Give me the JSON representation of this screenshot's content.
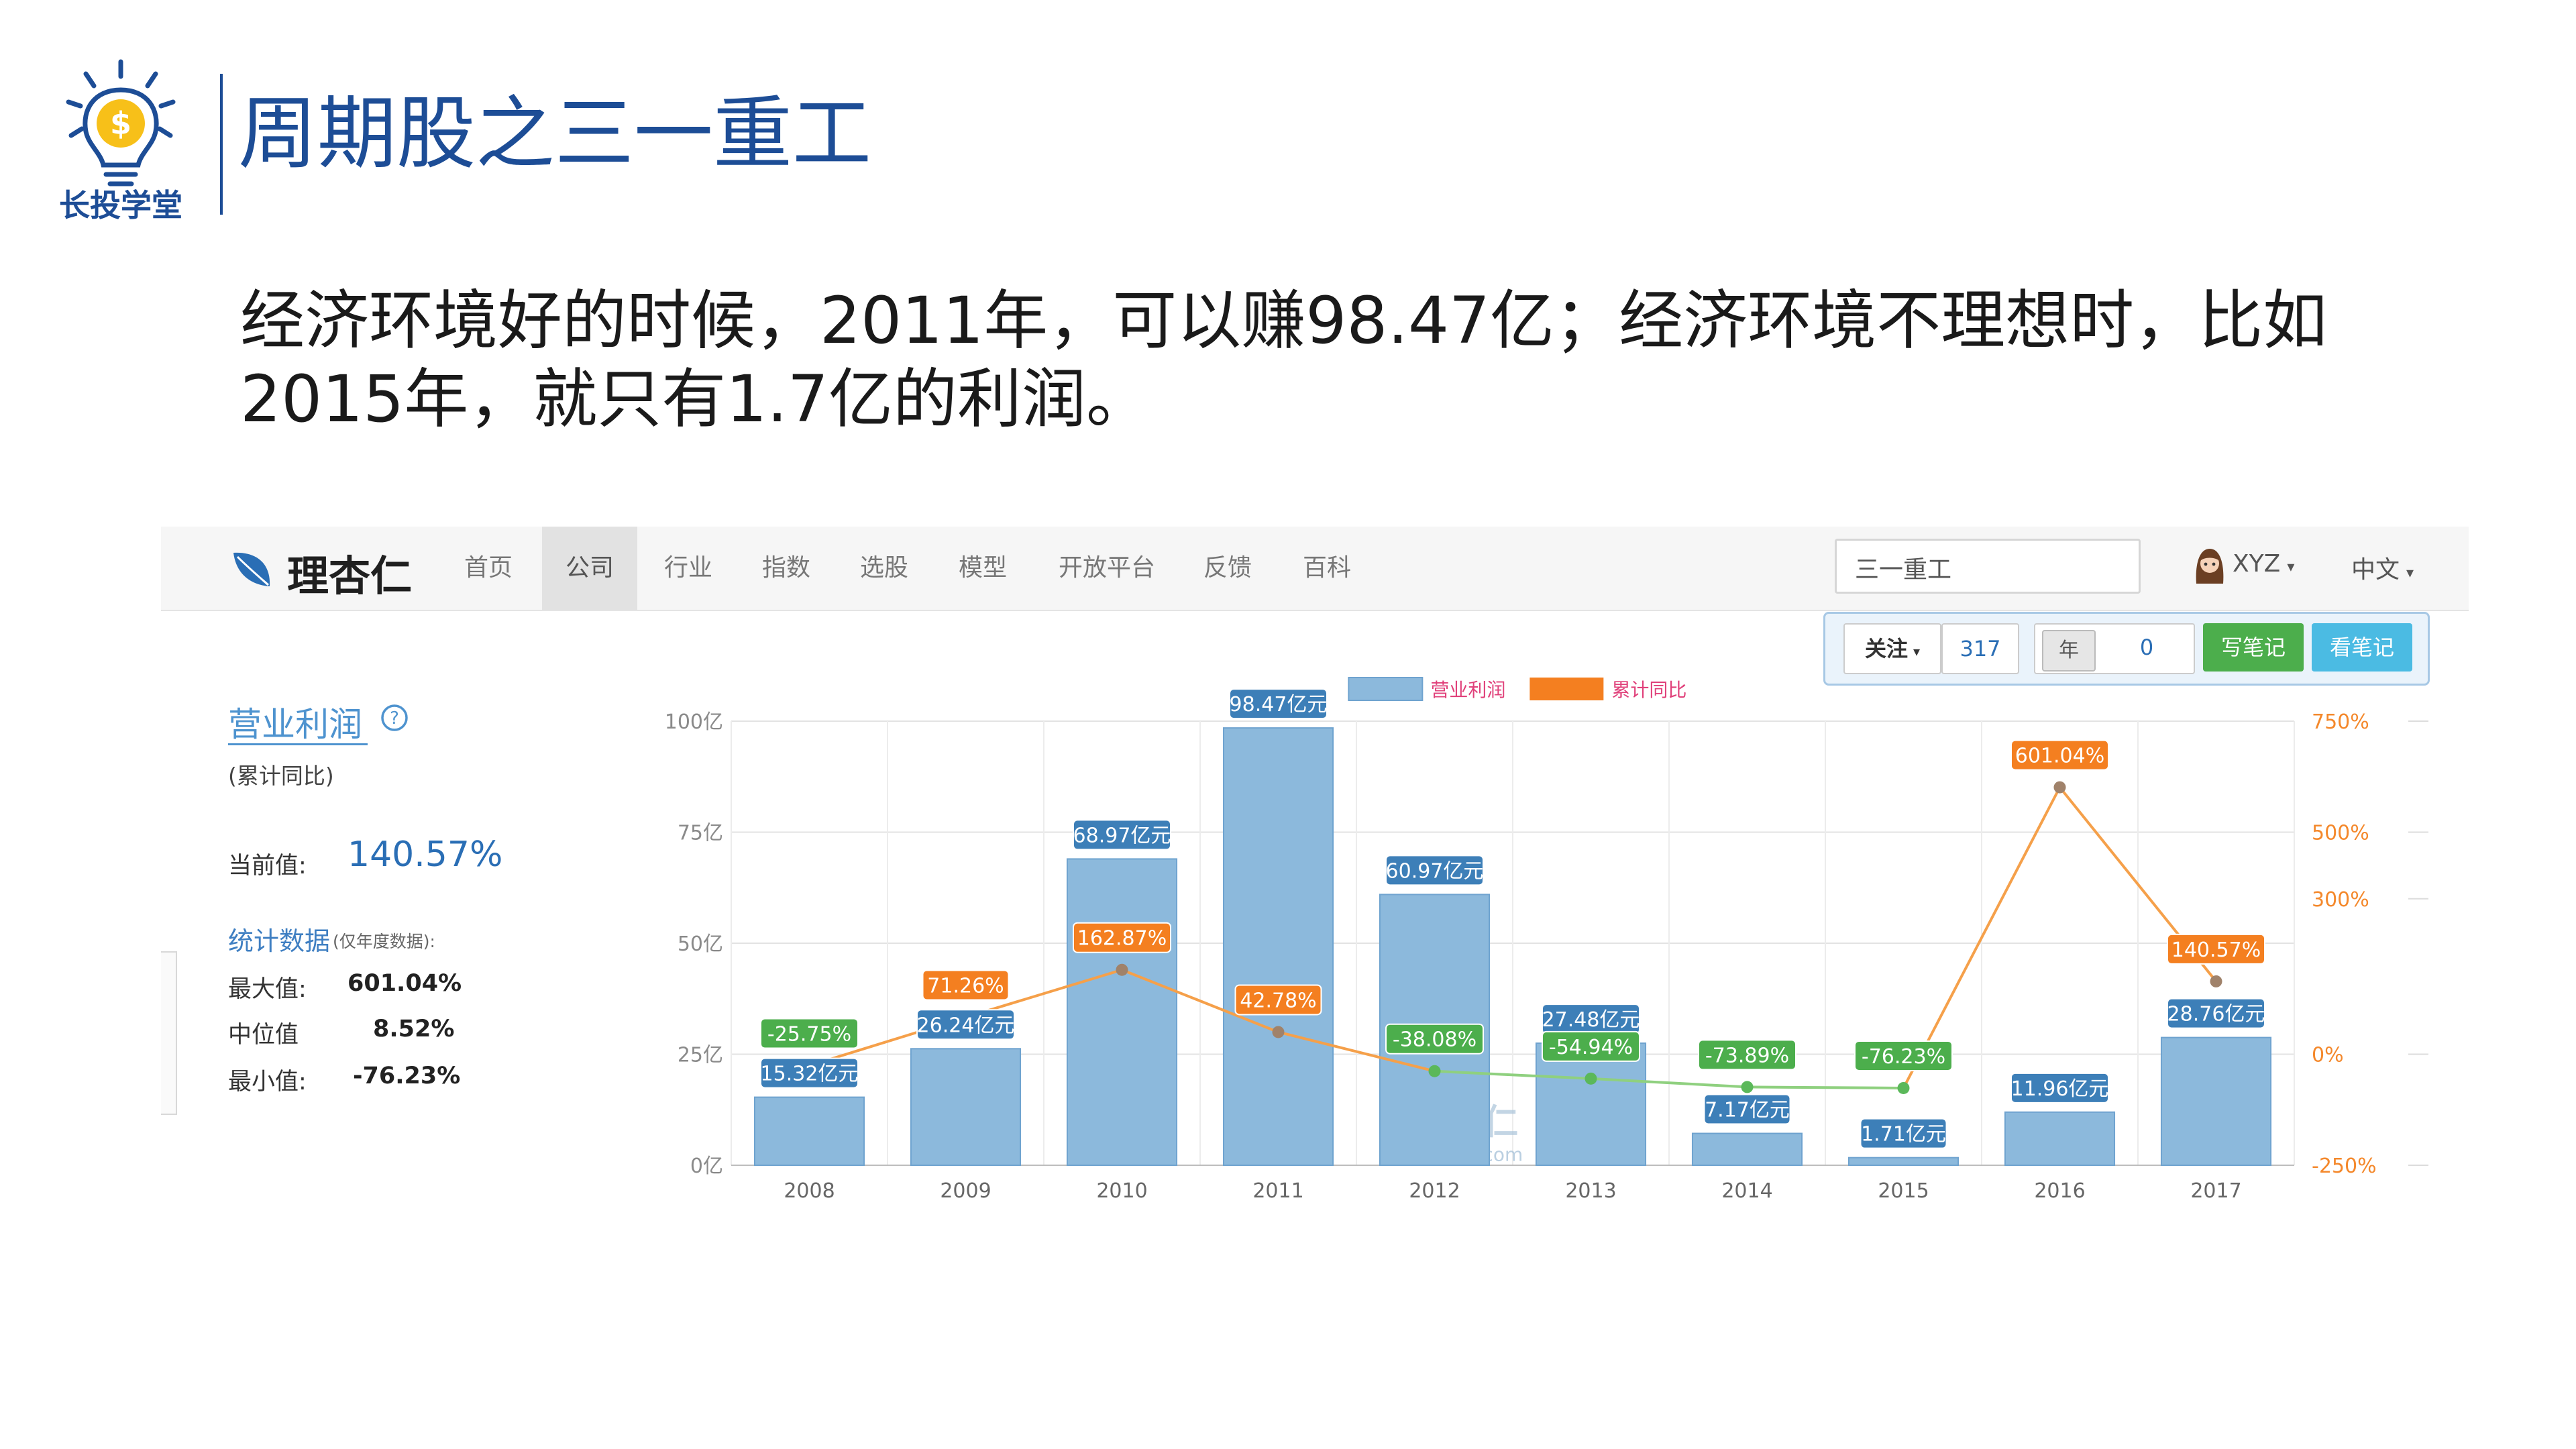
{
  "slide": {
    "logo_text": "长投学堂",
    "title": "周期股之三一重工",
    "body": "经济环境好的时候，2011年，可以赚98.47亿；经济环境不理想时，比如2015年，就只有1.7亿的利润。"
  },
  "app": {
    "brand": "理杏仁",
    "nav": [
      {
        "label": "首页",
        "active": false
      },
      {
        "label": "公司",
        "active": true
      },
      {
        "label": "行业",
        "active": false
      },
      {
        "label": "指数",
        "active": false
      },
      {
        "label": "选股",
        "active": false
      },
      {
        "label": "模型",
        "active": false
      },
      {
        "label": "开放平台",
        "active": false
      },
      {
        "label": "反馈",
        "active": false
      },
      {
        "label": "百科",
        "active": false
      }
    ],
    "search_value": "三一重工",
    "user": "XYZ",
    "language": "中文",
    "actions": {
      "follow": "关注",
      "follow_count": "317",
      "year_label": "年",
      "year_value": "0",
      "write_note": "写笔记",
      "view_note": "看笔记"
    }
  },
  "panel": {
    "metric": "营业利润",
    "metric_sub": "(累计同比)",
    "current_label": "当前值:",
    "current_value": "140.57%",
    "stats_title": "统计数据",
    "stats_note": "(仅年度数据):",
    "stats": [
      {
        "label": "最大值:",
        "value": "601.04%"
      },
      {
        "label": "中位值",
        "value": "8.52%"
      },
      {
        "label": "最小值:",
        "value": "-76.23%"
      }
    ]
  },
  "chart_data": {
    "type": "bar",
    "categories": [
      "2008",
      "2009",
      "2010",
      "2011",
      "2012",
      "2013",
      "2014",
      "2015",
      "2016",
      "2017"
    ],
    "series": [
      {
        "name": "营业利润",
        "type": "bar",
        "axis": "left",
        "values": [
          15.32,
          26.24,
          68.97,
          98.47,
          60.97,
          27.48,
          7.17,
          1.71,
          11.96,
          28.76
        ],
        "labels": [
          "15.32亿元",
          "26.24亿元",
          "68.97亿元",
          "98.47亿元",
          "60.97亿元",
          "27.48亿元",
          "7.17亿元",
          "1.71亿元",
          "11.96亿元",
          "28.76亿元"
        ]
      },
      {
        "name": "累计同比",
        "type": "line",
        "axis": "right",
        "values": [
          -25.75,
          71.26,
          162.87,
          42.78,
          -38.08,
          -54.94,
          -73.89,
          -76.23,
          601.04,
          140.57
        ],
        "labels": [
          "-25.75%",
          "71.26%",
          "162.87%",
          "42.78%",
          "-38.08%",
          "-54.94%",
          "-73.89%",
          "-76.23%",
          "601.04%",
          "140.57%"
        ]
      }
    ],
    "left_axis": {
      "ticks": [
        0,
        25,
        50,
        75,
        100
      ],
      "tick_labels": [
        "0亿",
        "25亿",
        "50亿",
        "75亿",
        "100亿"
      ],
      "range": [
        0,
        100
      ]
    },
    "right_axis": {
      "ticks": [
        -250,
        0,
        300,
        500,
        750
      ],
      "tick_labels": [
        "-250%",
        "0%",
        "300%",
        "500%",
        "750%"
      ]
    },
    "watermark": [
      "理杏仁",
      "lixinger.com"
    ],
    "legend_position": "top-center",
    "grid": true,
    "colors": {
      "bar_fill": "#8cb9dc",
      "bar_stroke": "#6fa3cf",
      "bar_label": "#3d7fb8",
      "line_positive": "#f5a04a",
      "line_negative": "#8fd07f",
      "label_positive": "#f47f20",
      "label_negative": "#4cae4c"
    }
  }
}
